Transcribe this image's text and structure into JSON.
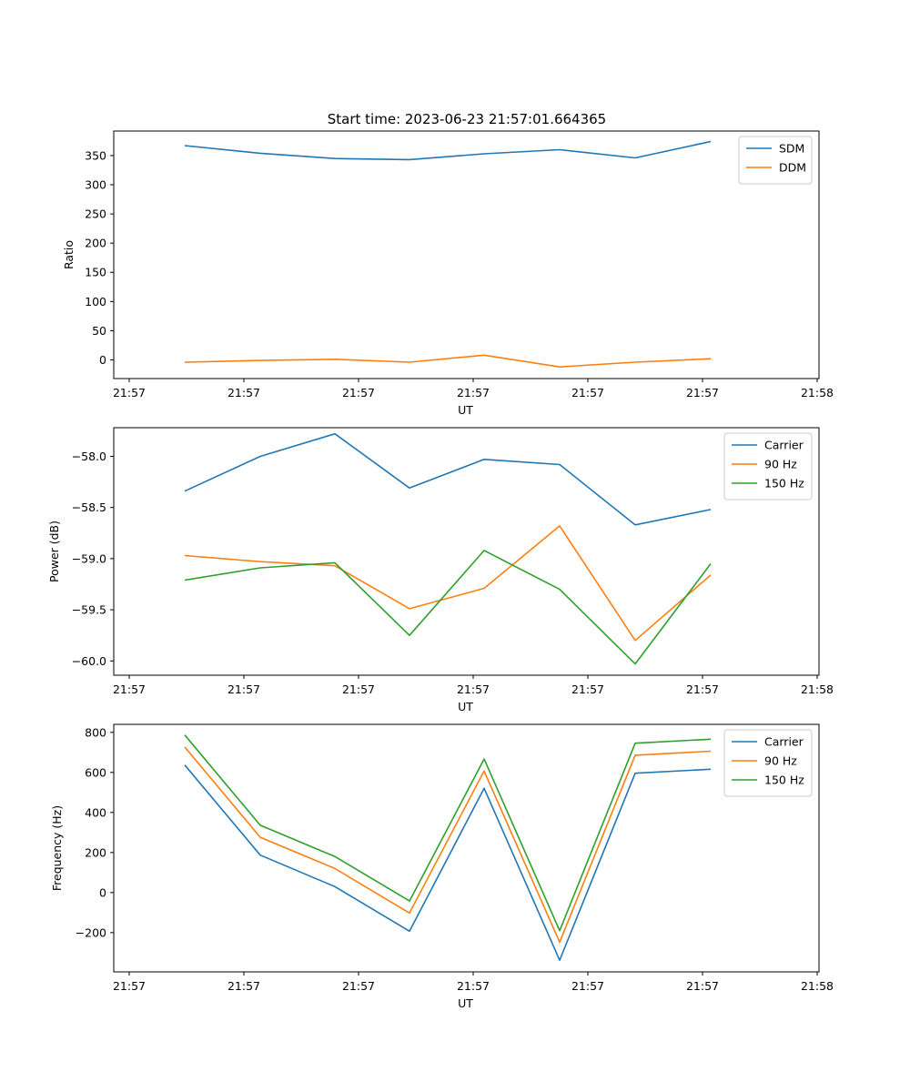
{
  "figure": {
    "title": "Start time: 2023-06-23 21:57:01.664365"
  },
  "chart_data": [
    {
      "type": "line",
      "title": "Start time: 2023-06-23 21:57:01.664365",
      "xlabel": "UT",
      "ylabel": "Ratio",
      "x_tick_labels": [
        "21:57",
        "21:57",
        "21:57",
        "21:57",
        "21:57",
        "21:57",
        "21:58"
      ],
      "y_ticks": [
        0,
        50,
        100,
        150,
        200,
        250,
        300,
        350
      ],
      "ylim": [
        -32,
        392
      ],
      "grid": false,
      "legend": "upper right",
      "x_index": [
        0,
        1,
        2,
        3,
        4,
        5,
        6,
        7
      ],
      "series": [
        {
          "name": "SDM",
          "color": "#1f77b4",
          "values": [
            367,
            354,
            345,
            343,
            353,
            360,
            346,
            374
          ]
        },
        {
          "name": "DDM",
          "color": "#ff7f0e",
          "values": [
            -4,
            -1,
            1,
            -4,
            8,
            -12,
            -4,
            2
          ]
        }
      ]
    },
    {
      "type": "line",
      "xlabel": "UT",
      "ylabel": "Power (dB)",
      "x_tick_labels": [
        "21:57",
        "21:57",
        "21:57",
        "21:57",
        "21:57",
        "21:57",
        "21:58"
      ],
      "y_ticks": [
        -60.0,
        -59.5,
        -59.0,
        -58.5,
        -58.0
      ],
      "y_tick_labels": [
        "−60.0",
        "−59.5",
        "−59.0",
        "−58.5",
        "−58.0"
      ],
      "ylim": [
        -60.14,
        -57.72
      ],
      "grid": false,
      "legend": "upper right",
      "x_index": [
        0,
        1,
        2,
        3,
        4,
        5,
        6,
        7
      ],
      "series": [
        {
          "name": "Carrier",
          "color": "#1f77b4",
          "values": [
            -58.34,
            -58.0,
            -57.78,
            -58.31,
            -58.03,
            -58.08,
            -58.67,
            -58.52
          ]
        },
        {
          "name": "90 Hz",
          "color": "#ff7f0e",
          "values": [
            -58.97,
            -59.03,
            -59.07,
            -59.49,
            -59.29,
            -58.68,
            -59.8,
            -59.16
          ]
        },
        {
          "name": "150 Hz",
          "color": "#2ca02c",
          "values": [
            -59.21,
            -59.09,
            -59.04,
            -59.75,
            -58.92,
            -59.3,
            -60.03,
            -59.05
          ]
        }
      ]
    },
    {
      "type": "line",
      "xlabel": "UT",
      "ylabel": "Frequency (Hz)",
      "x_tick_labels": [
        "21:57",
        "21:57",
        "21:57",
        "21:57",
        "21:57",
        "21:57",
        "21:58"
      ],
      "y_ticks": [
        -200,
        0,
        200,
        400,
        600,
        800
      ],
      "y_tick_labels": [
        "−200",
        "0",
        "200",
        "400",
        "600",
        "800"
      ],
      "ylim": [
        -396,
        840
      ],
      "grid": false,
      "legend": "upper right",
      "x_index": [
        0,
        1,
        2,
        3,
        4,
        5,
        6,
        7
      ],
      "series": [
        {
          "name": "Carrier",
          "color": "#1f77b4",
          "values": [
            637,
            187,
            30,
            -193,
            521,
            -338,
            596,
            616
          ]
        },
        {
          "name": "90 Hz",
          "color": "#ff7f0e",
          "values": [
            727,
            276,
            120,
            -102,
            607,
            -248,
            686,
            706
          ]
        },
        {
          "name": "150 Hz",
          "color": "#2ca02c",
          "values": [
            787,
            336,
            180,
            -42,
            667,
            -190,
            746,
            766
          ]
        }
      ]
    }
  ]
}
